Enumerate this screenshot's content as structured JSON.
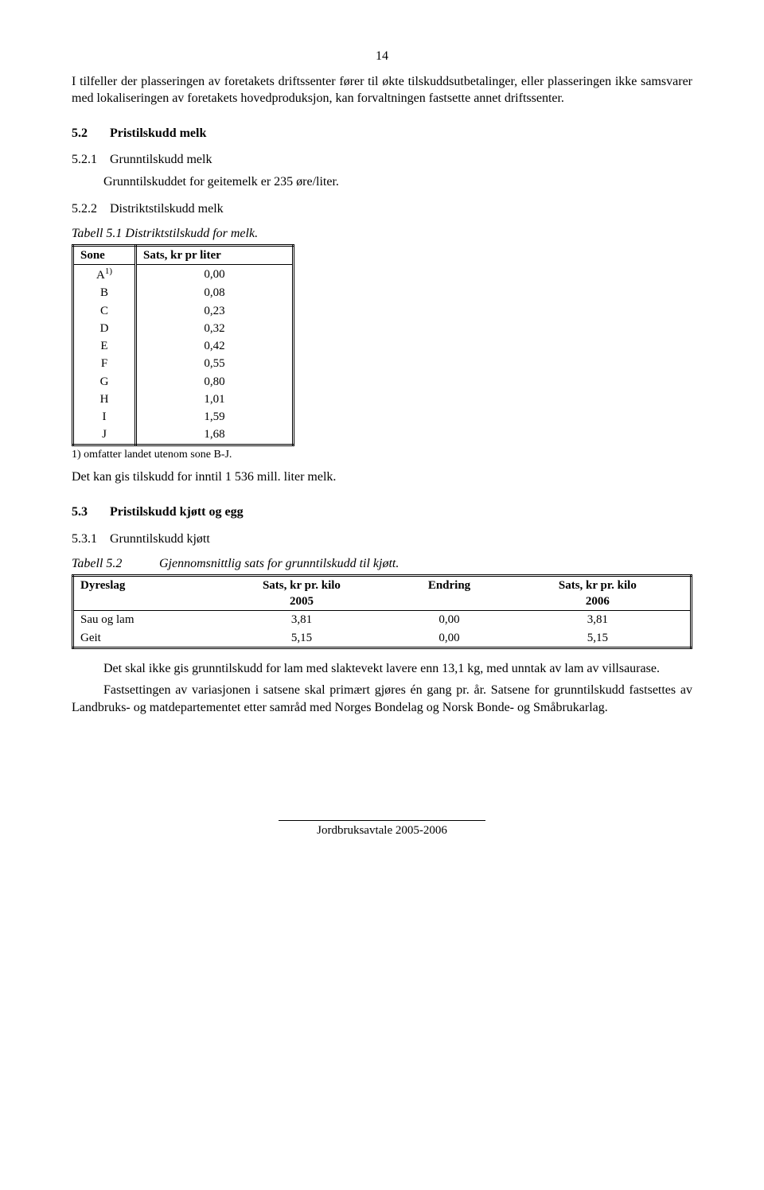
{
  "pageNumber": "14",
  "intro_p1": "I tilfeller der plasseringen av foretakets driftssenter fører til økte tilskuddsutbetalinger, eller plasseringen ikke samsvarer med lokaliseringen av foretakets hovedproduksjon, kan forvaltningen fastsette annet driftssenter.",
  "sec52": {
    "num": "5.2",
    "title": "Pristilskudd melk"
  },
  "sec521": {
    "num": "5.2.1",
    "title": "Grunntilskudd melk"
  },
  "sec521_body": "Grunntilskuddet for geitemelk er 235 øre/liter.",
  "sec522": {
    "num": "5.2.2",
    "title": "Distriktstilskudd melk"
  },
  "table51_caption": "Tabell 5.1  Distriktstilskudd for melk.",
  "table51": {
    "headers": [
      "Sone",
      "Sats, kr pr liter"
    ],
    "rows": [
      {
        "zone": "A",
        "sup": "1)",
        "value": "0,00"
      },
      {
        "zone": "B",
        "sup": "",
        "value": "0,08"
      },
      {
        "zone": "C",
        "sup": "",
        "value": "0,23"
      },
      {
        "zone": "D",
        "sup": "",
        "value": "0,32"
      },
      {
        "zone": "E",
        "sup": "",
        "value": "0,42"
      },
      {
        "zone": "F",
        "sup": "",
        "value": "0,55"
      },
      {
        "zone": "G",
        "sup": "",
        "value": "0,80"
      },
      {
        "zone": "H",
        "sup": "",
        "value": "1,01"
      },
      {
        "zone": "I",
        "sup": "",
        "value": "1,59"
      },
      {
        "zone": "J",
        "sup": "",
        "value": "1,68"
      }
    ],
    "footnote": "1) omfatter landet utenom sone B-J."
  },
  "after_table51": "Det kan gis tilskudd for inntil 1 536 mill. liter melk.",
  "sec53": {
    "num": "5.3",
    "title": "Pristilskudd kjøtt og egg"
  },
  "sec531": {
    "num": "5.3.1",
    "title": "Grunntilskudd kjøtt"
  },
  "table52_label": "Tabell 5.2",
  "table52_caption": "Gjennomsnittlig sats for grunntilskudd til kjøtt.",
  "table52": {
    "headers": [
      "Dyreslag",
      "Sats, kr pr. kilo 2005",
      "Endring",
      "Sats, kr pr. kilo 2006"
    ],
    "header_line1": [
      "Dyreslag",
      "Sats, kr pr. kilo",
      "Endring",
      "Sats, kr pr. kilo"
    ],
    "header_line2": [
      "",
      "2005",
      "",
      "2006"
    ],
    "rows": [
      {
        "c0": "Sau og lam",
        "c1": "3,81",
        "c2": "0,00",
        "c3": "3,81"
      },
      {
        "c0": "Geit",
        "c1": "5,15",
        "c2": "0,00",
        "c3": "5,15"
      }
    ]
  },
  "after_table52_p1": "Det skal ikke gis grunntilskudd for lam med slaktevekt lavere enn 13,1 kg, med unntak av lam av villsaurase.",
  "after_table52_p2": "Fastsettingen av variasjonen i satsene skal primært gjøres én gang pr. år. Satsene for grunntilskudd fastsettes av Landbruks- og matdepartementet etter samråd med Norges Bondelag og Norsk Bonde- og Småbrukarlag.",
  "footer": "Jordbruksavtale 2005-2006"
}
